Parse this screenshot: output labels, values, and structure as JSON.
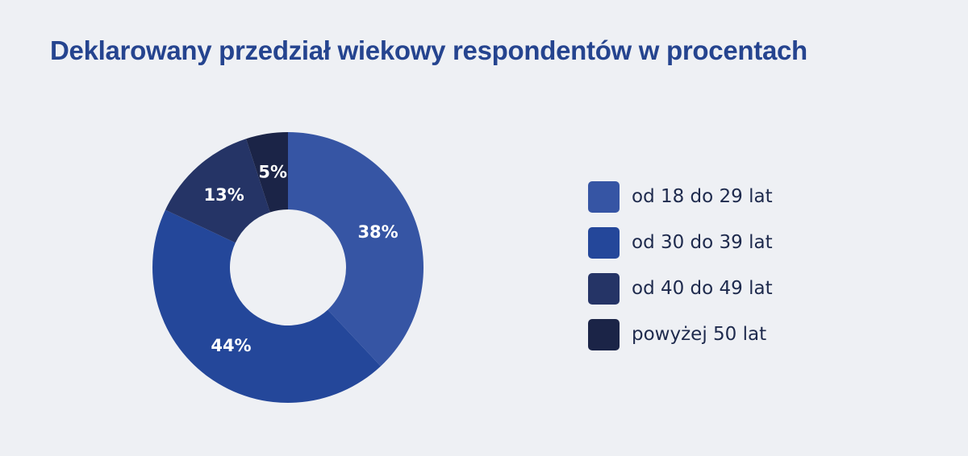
{
  "chart_data": {
    "type": "pie",
    "donut": true,
    "title": "Deklarowany przedział wiekowy respondentów w procentach",
    "categories": [
      "od 18 do 29 lat",
      "od 30 do 39 lat",
      "od 40 do 49 lat",
      "powyżej 50 lat"
    ],
    "values": [
      38,
      44,
      13,
      5
    ],
    "labels": [
      "38%",
      "44%",
      "13%",
      "5%"
    ],
    "colors": [
      "#3655a4",
      "#24479a",
      "#253466",
      "#1b2447"
    ],
    "legend_position": "right",
    "grid": false
  }
}
